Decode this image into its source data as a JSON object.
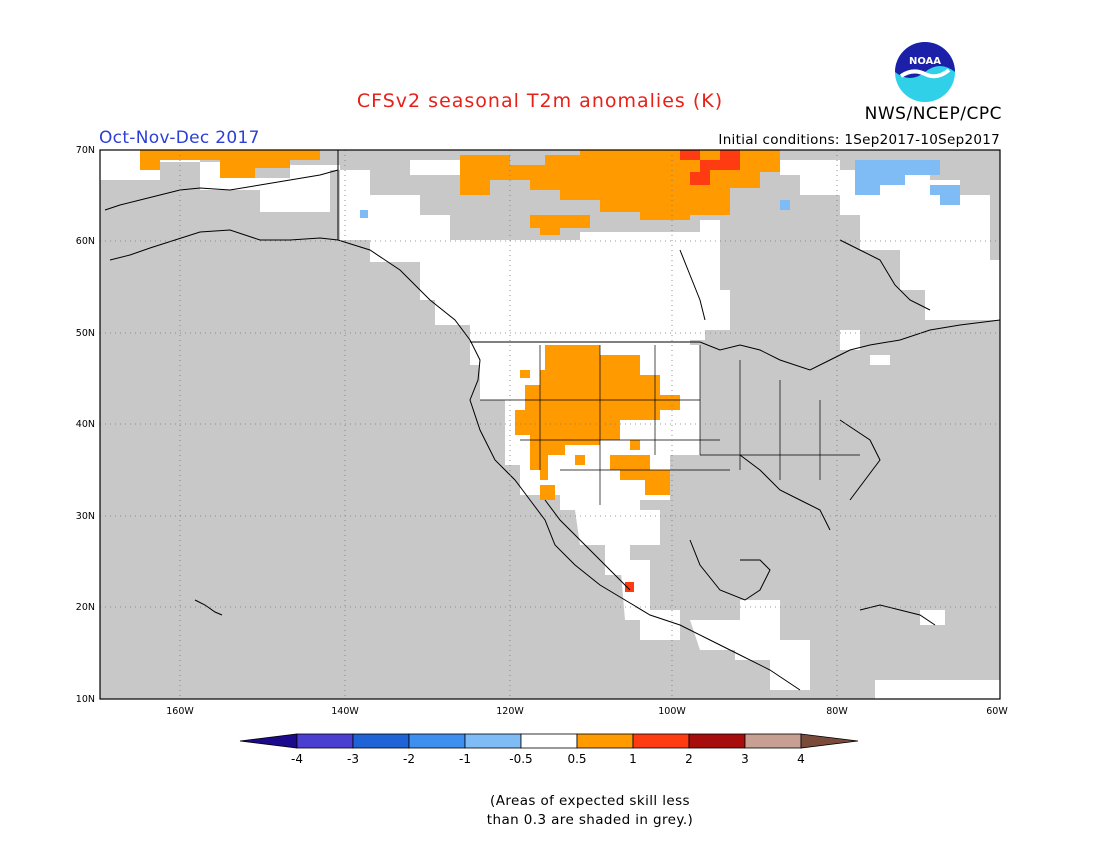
{
  "title": "CFSv2 seasonal T2m anomalies (K)",
  "agency": "NWS/NCEP/CPC",
  "logo_text": "NOAA",
  "season": "Oct-Nov-Dec 2017",
  "initial_conditions": "Initial conditions: 1Sep2017-10Sep2017",
  "footnote_line1": "(Areas of expected skill less",
  "footnote_line2": "than 0.3 are shaded in grey.)",
  "lat_labels": [
    "70N",
    "60N",
    "50N",
    "40N",
    "30N",
    "20N",
    "10N"
  ],
  "lon_labels": [
    "160W",
    "140W",
    "120W",
    "100W",
    "80W",
    "60W"
  ],
  "colorbar": {
    "labels": [
      "-4",
      "-3",
      "-2",
      "-1",
      "-0.5",
      "0.5",
      "1",
      "2",
      "3",
      "4"
    ],
    "colors": [
      "#1c0a8c",
      "#4a3fd0",
      "#1f63d6",
      "#3e8ff0",
      "#7fbbf5",
      "#ffffff",
      "#ff9a00",
      "#ff3b12",
      "#a80d0d",
      "#c8a093",
      "#7a4a3a"
    ]
  },
  "colors": {
    "skill_grey": "#c8c8c8",
    "positive_anomaly": "#ff9a00",
    "strong_positive": "#ff3b12",
    "negative_anomaly": "#7fbbf5",
    "title_red": "#e8201a",
    "season_blue": "#2b3fd6"
  }
}
